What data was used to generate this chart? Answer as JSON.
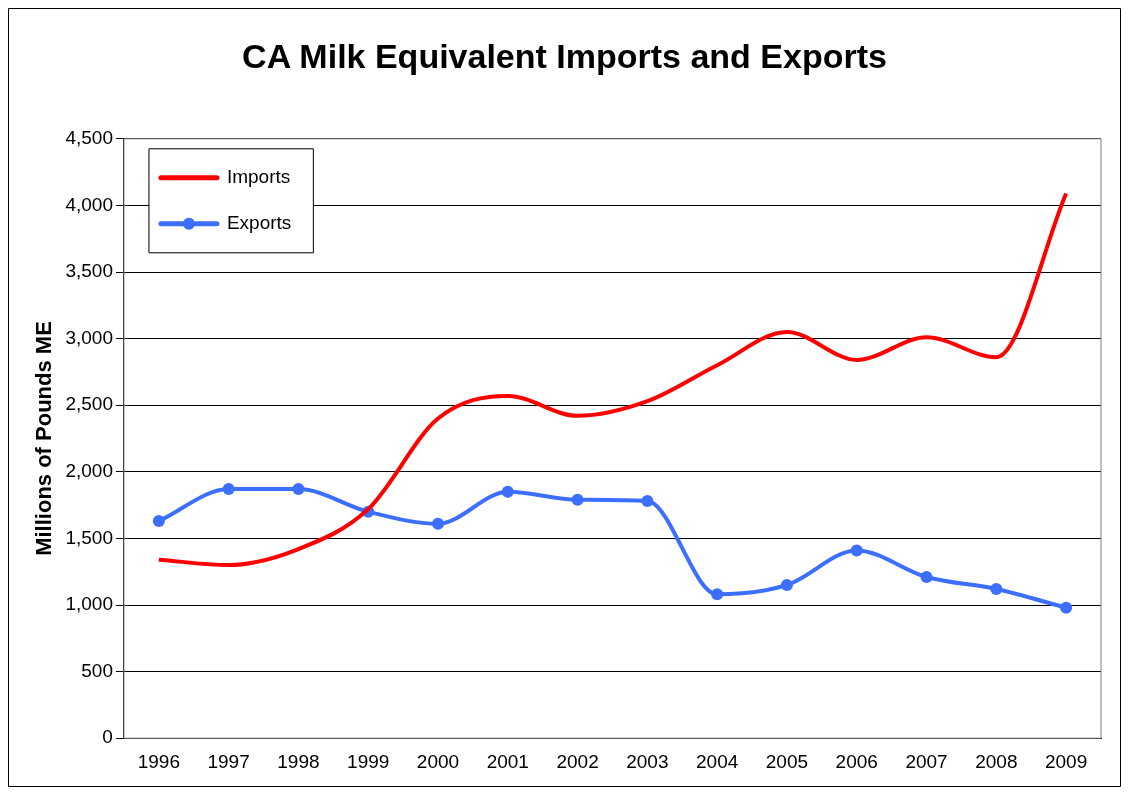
{
  "chart_data": {
    "type": "line",
    "title": "CA Milk Equivalent Imports and Exports",
    "ylabel": "Millions of Pounds ME",
    "categories": [
      "1996",
      "1997",
      "1998",
      "1999",
      "2000",
      "2001",
      "2002",
      "2003",
      "2004",
      "2005",
      "2006",
      "2007",
      "2008",
      "2009"
    ],
    "series": [
      {
        "name": "Imports",
        "color": "#ff0000",
        "marker": "none",
        "values": [
          1340,
          1300,
          1420,
          1720,
          2400,
          2570,
          2420,
          2530,
          2800,
          3050,
          2840,
          3010,
          2860,
          4090
        ]
      },
      {
        "name": "Exports",
        "color": "#3c6eff",
        "marker": "circle",
        "values": [
          1630,
          1870,
          1870,
          1700,
          1610,
          1850,
          1790,
          1780,
          1080,
          1150,
          1410,
          1210,
          1120,
          980
        ]
      }
    ],
    "ylim": [
      0,
      4500
    ],
    "yticks": [
      {
        "value": 0,
        "label": "0"
      },
      {
        "value": 500,
        "label": "500"
      },
      {
        "value": 1000,
        "label": "1,000"
      },
      {
        "value": 1500,
        "label": "1,500"
      },
      {
        "value": 2000,
        "label": "2,000"
      },
      {
        "value": 2500,
        "label": "2,500"
      },
      {
        "value": 3000,
        "label": "3,000"
      },
      {
        "value": 3500,
        "label": "3,500"
      },
      {
        "value": 4000,
        "label": "4,000"
      },
      {
        "value": 4500,
        "label": "4,500"
      }
    ],
    "grid": "y",
    "legend": "top left"
  }
}
